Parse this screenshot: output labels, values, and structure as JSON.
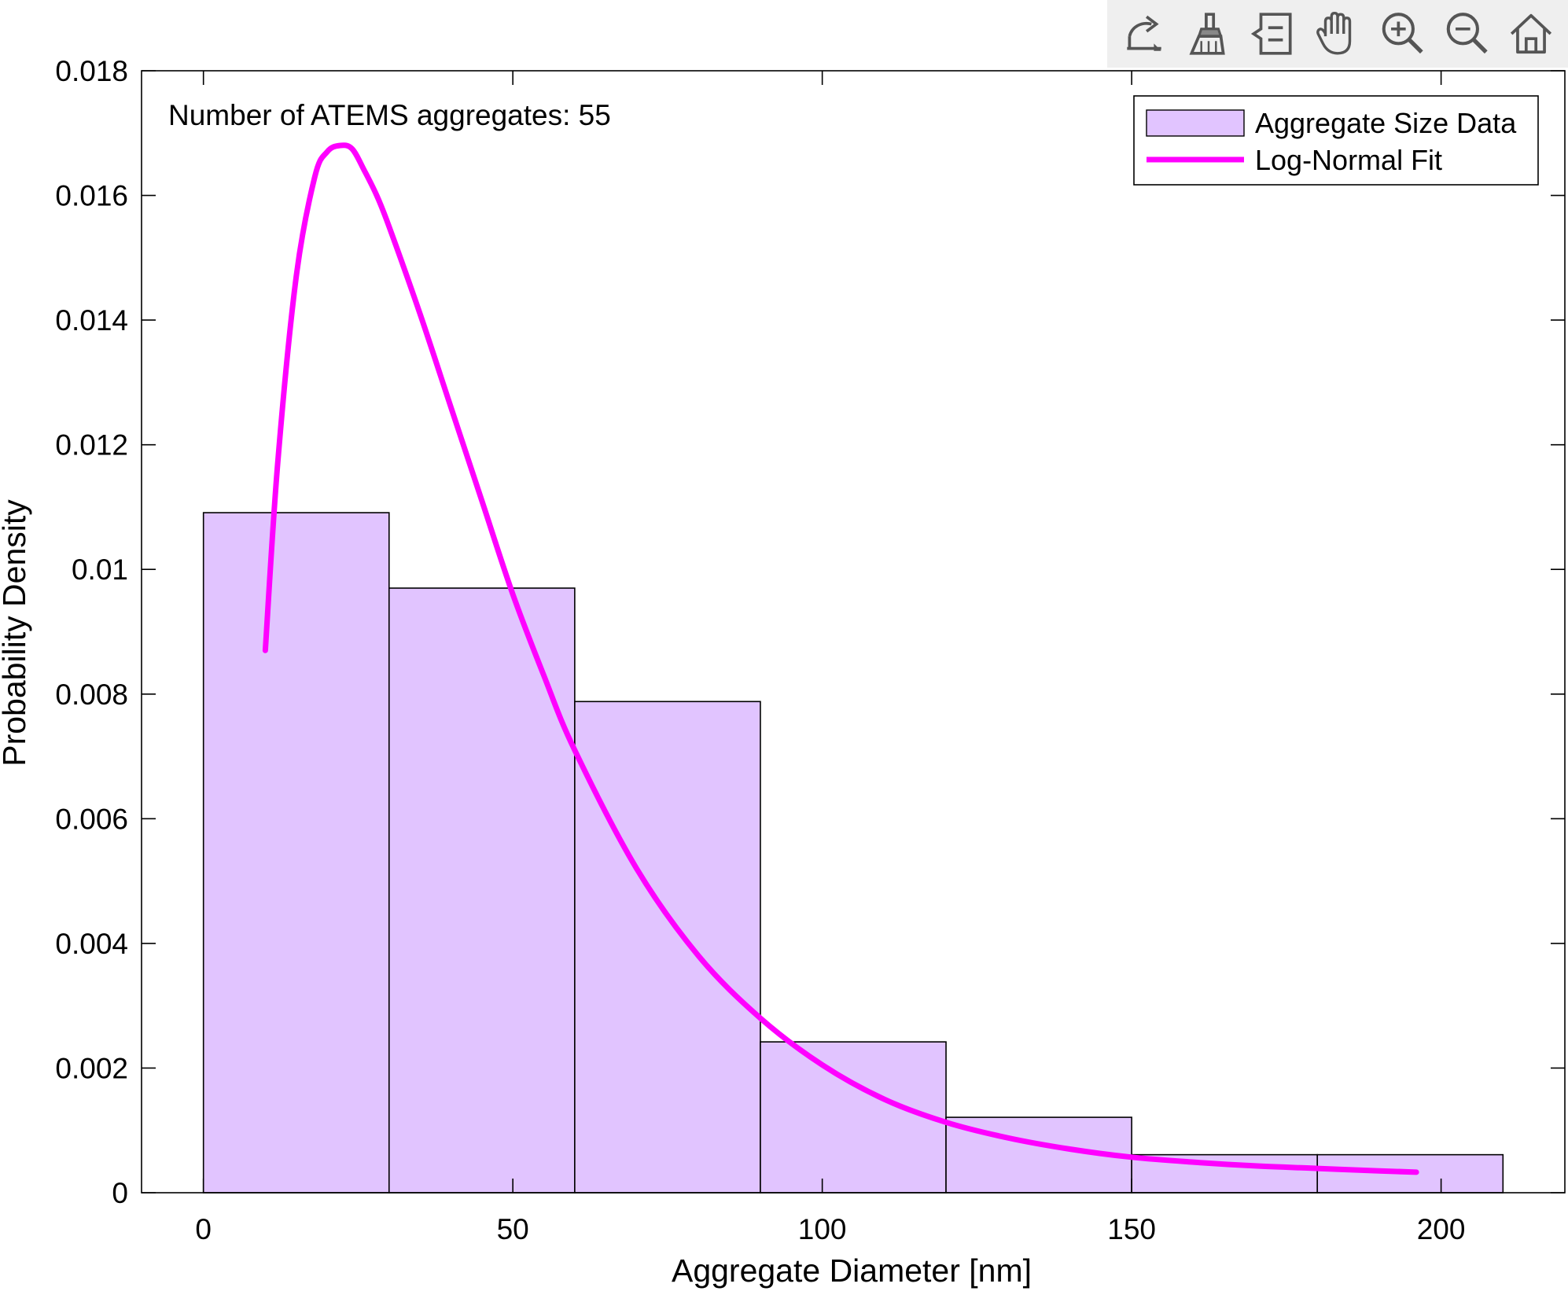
{
  "toolbar": {
    "items": [
      {
        "name": "export",
        "icon": "export-icon"
      },
      {
        "name": "brush",
        "icon": "brush-icon"
      },
      {
        "name": "data-tips",
        "icon": "datatip-icon"
      },
      {
        "name": "pan",
        "icon": "hand-icon"
      },
      {
        "name": "zoom-in",
        "icon": "zoom-in-icon"
      },
      {
        "name": "zoom-out",
        "icon": "zoom-out-icon"
      },
      {
        "name": "home",
        "icon": "home-icon"
      }
    ]
  },
  "chart_data": {
    "type": "bar",
    "title": "",
    "xlabel": "Aggregate Diameter [nm]",
    "ylabel": "Probability Density",
    "xlim": [
      -10,
      220
    ],
    "ylim": [
      0,
      0.018
    ],
    "xticks": [
      0,
      50,
      100,
      150,
      200
    ],
    "xtick_labels": [
      "0",
      "50",
      "100",
      "150",
      "200"
    ],
    "yticks": [
      0,
      0.002,
      0.004,
      0.006,
      0.008,
      0.01,
      0.012,
      0.014,
      0.016,
      0.018
    ],
    "ytick_labels": [
      "0",
      "0.002",
      "0.004",
      "0.006",
      "0.008",
      "0.01",
      "0.012",
      "0.014",
      "0.016",
      "0.018"
    ],
    "annotation": "Number of ATEMS  aggregates: 55",
    "legend_position": "top-right",
    "grid": false,
    "series": [
      {
        "name": "Aggregate Size Data",
        "type": "histogram",
        "color": "#e1c4ff",
        "edge_color": "#000000",
        "bin_edges": [
          0,
          30,
          60,
          90,
          120,
          150,
          180,
          210
        ],
        "values": [
          0.01091,
          0.0097,
          0.00788,
          0.00242,
          0.00121,
          0.00061,
          0.00061
        ]
      },
      {
        "name": "Log-Normal Fit",
        "type": "line",
        "color": "#ff00ff",
        "x": [
          10,
          12,
          15,
          18,
          20,
          22,
          24,
          26,
          28,
          30,
          35,
          40,
          45,
          50,
          55,
          60,
          70,
          80,
          90,
          100,
          110,
          120,
          130,
          140,
          150,
          160,
          170,
          180,
          190,
          196
        ],
        "y": [
          0.0087,
          0.0117,
          0.0147,
          0.0163,
          0.0167,
          0.0168,
          0.01675,
          0.0164,
          0.016,
          0.0155,
          0.0141,
          0.0126,
          0.0111,
          0.0096,
          0.0083,
          0.0071,
          0.0052,
          0.0038,
          0.0028,
          0.00205,
          0.0015,
          0.00113,
          0.00088,
          0.0007,
          0.00057,
          0.00049,
          0.00043,
          0.00039,
          0.00035,
          0.00033
        ]
      }
    ]
  }
}
